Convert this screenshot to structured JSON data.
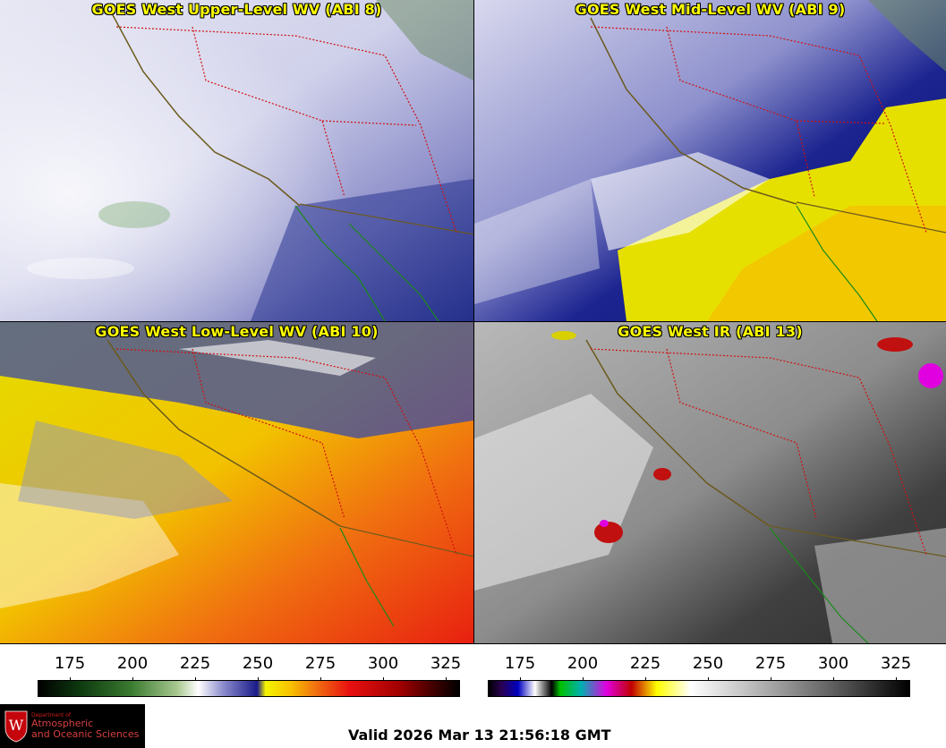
{
  "panels": {
    "upper_wv": {
      "title": "GOES West Upper-Level WV (ABI 8)"
    },
    "mid_wv": {
      "title": "GOES West Mid-Level WV (ABI 9)"
    },
    "low_wv": {
      "title": "GOES West Low-Level WV (ABI 10)"
    },
    "ir": {
      "title": "GOES West IR (ABI 13)"
    }
  },
  "scales": {
    "wv": {
      "ticks": [
        "175",
        "200",
        "225",
        "250",
        "275",
        "300",
        "325"
      ]
    },
    "ir": {
      "ticks": [
        "175",
        "200",
        "225",
        "250",
        "275",
        "300",
        "325"
      ]
    }
  },
  "logo": {
    "line1": "Department of",
    "line2": "Atmospheric",
    "line3": "and Oceanic Sciences"
  },
  "footer": {
    "valid_text": "Valid 2026 Mar 13 21:56:18 GMT"
  }
}
